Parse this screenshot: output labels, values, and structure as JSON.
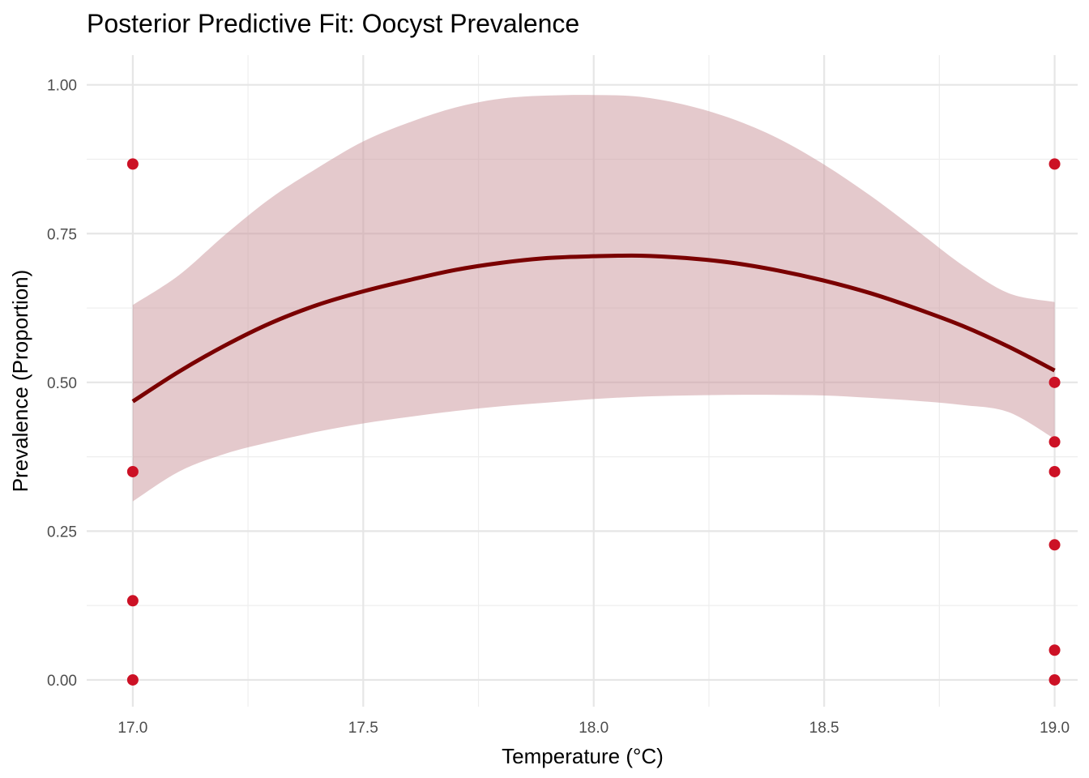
{
  "chart_data": {
    "type": "line",
    "title": "Posterior Predictive Fit: Oocyst Prevalence",
    "xlabel": "Temperature (°C)",
    "ylabel": "Prevalence (Proportion)",
    "xlim": [
      16.9,
      19.05
    ],
    "ylim": [
      -0.045,
      1.05
    ],
    "x_ticks": [
      17.0,
      17.5,
      18.0,
      18.5,
      19.0
    ],
    "x_tick_labels": [
      "17.0",
      "17.5",
      "18.0",
      "18.5",
      "19.0"
    ],
    "y_ticks": [
      0.0,
      0.25,
      0.5,
      0.75,
      1.0
    ],
    "y_tick_labels": [
      "0.00",
      "0.25",
      "0.50",
      "0.75",
      "1.00"
    ],
    "grid": true,
    "colors": {
      "fit_line": "#7a0000",
      "ribbon": "#c9949a",
      "points": "#cc1125"
    },
    "fit": {
      "x": [
        17.0,
        17.1,
        17.2,
        17.3,
        17.4,
        17.5,
        17.6,
        17.7,
        17.8,
        17.9,
        18.0,
        18.1,
        18.2,
        18.3,
        18.4,
        18.5,
        18.6,
        18.7,
        18.8,
        18.9,
        19.0
      ],
      "mean": [
        0.468,
        0.518,
        0.562,
        0.6,
        0.63,
        0.653,
        0.672,
        0.689,
        0.701,
        0.709,
        0.712,
        0.713,
        0.709,
        0.701,
        0.688,
        0.671,
        0.65,
        0.624,
        0.595,
        0.56,
        0.52
      ],
      "lower": [
        0.3,
        0.35,
        0.38,
        0.4,
        0.417,
        0.431,
        0.442,
        0.452,
        0.46,
        0.466,
        0.472,
        0.476,
        0.478,
        0.479,
        0.479,
        0.478,
        0.474,
        0.469,
        0.462,
        0.45,
        0.405
      ],
      "upper": [
        0.63,
        0.68,
        0.748,
        0.81,
        0.86,
        0.905,
        0.937,
        0.962,
        0.977,
        0.982,
        0.983,
        0.98,
        0.966,
        0.943,
        0.91,
        0.866,
        0.814,
        0.756,
        0.697,
        0.65,
        0.635
      ]
    },
    "points": [
      {
        "x": 17.0,
        "y": 0.867
      },
      {
        "x": 17.0,
        "y": 0.35
      },
      {
        "x": 17.0,
        "y": 0.133
      },
      {
        "x": 17.0,
        "y": 0.0
      },
      {
        "x": 19.0,
        "y": 0.867
      },
      {
        "x": 19.0,
        "y": 0.5
      },
      {
        "x": 19.0,
        "y": 0.4
      },
      {
        "x": 19.0,
        "y": 0.35
      },
      {
        "x": 19.0,
        "y": 0.227
      },
      {
        "x": 19.0,
        "y": 0.05
      },
      {
        "x": 19.0,
        "y": 0.0
      }
    ]
  }
}
